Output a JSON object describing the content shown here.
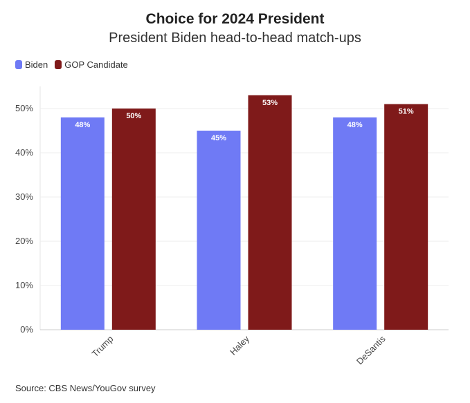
{
  "title": "Choice for 2024 President",
  "subtitle": "President Biden head-to-head match-ups",
  "source": "Source: CBS News/YouGov survey",
  "legend": [
    {
      "label": "Biden",
      "color": "#6f7af5"
    },
    {
      "label": "GOP Candidate",
      "color": "#7f1a1a"
    }
  ],
  "chart_data": {
    "type": "bar",
    "categories": [
      "Trump",
      "Haley",
      "DeSantis"
    ],
    "series": [
      {
        "name": "Biden",
        "values": [
          48,
          45,
          48
        ],
        "color": "#6f7af5"
      },
      {
        "name": "GOP Candidate",
        "values": [
          50,
          53,
          51
        ],
        "color": "#7f1a1a"
      }
    ],
    "data_labels": [
      [
        "48%",
        "45%",
        "48%"
      ],
      [
        "50%",
        "53%",
        "51%"
      ]
    ],
    "ylim": [
      0,
      55
    ],
    "yticks": [
      0,
      10,
      20,
      30,
      40,
      50
    ],
    "ytick_labels": [
      "0%",
      "10%",
      "20%",
      "30%",
      "40%",
      "50%"
    ],
    "grid": true,
    "legend_position": "top-left"
  }
}
